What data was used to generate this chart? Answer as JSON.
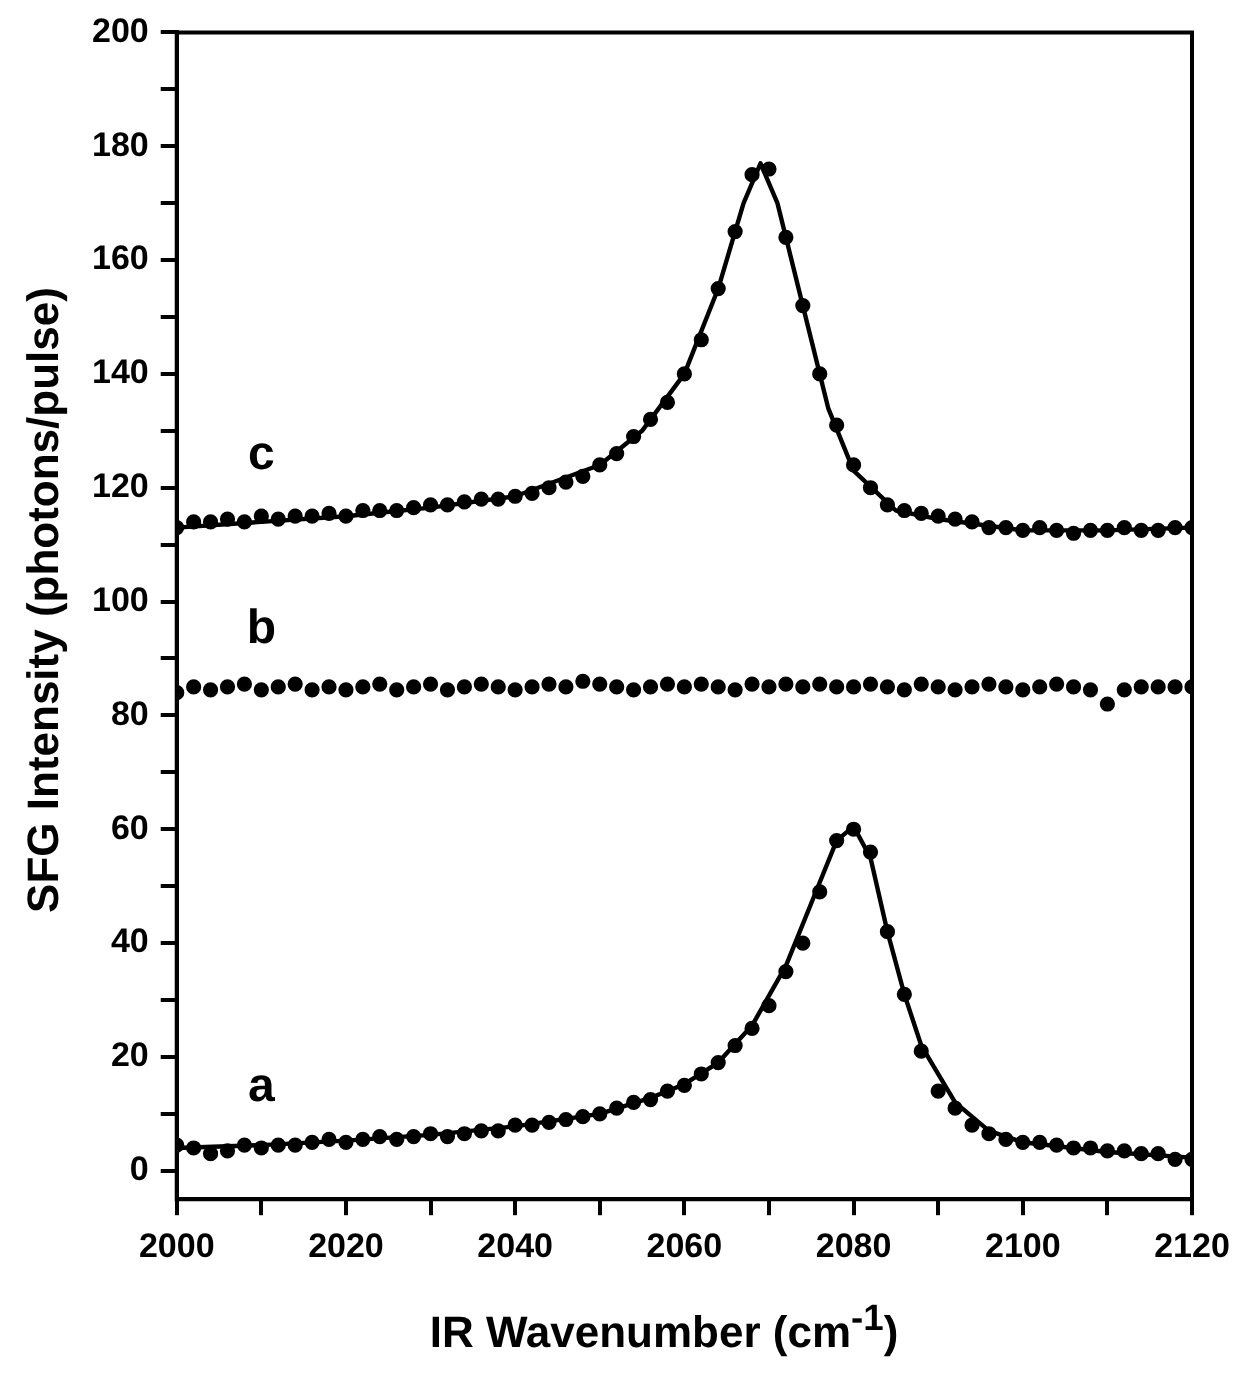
{
  "chart_data": {
    "type": "scatter",
    "xlabel": "IR Wavenumber (cm$^{-1}$)",
    "ylabel": "SFG Intensity (photons/pulse)",
    "x": [
      2000,
      2002,
      2004,
      2006,
      2008,
      2010,
      2012,
      2014,
      2016,
      2018,
      2020,
      2022,
      2024,
      2026,
      2028,
      2030,
      2032,
      2034,
      2036,
      2038,
      2040,
      2042,
      2044,
      2046,
      2048,
      2050,
      2052,
      2054,
      2056,
      2058,
      2060,
      2062,
      2064,
      2066,
      2068,
      2070,
      2072,
      2074,
      2076,
      2078,
      2080,
      2082,
      2084,
      2086,
      2088,
      2090,
      2092,
      2094,
      2096,
      2098,
      2100,
      2102,
      2104,
      2106,
      2108,
      2110,
      2112,
      2114,
      2116,
      2118,
      2120
    ],
    "series": [
      {
        "name": "a",
        "color": "#000000",
        "values": [
          4.5,
          4,
          3,
          3.5,
          4.5,
          4,
          4.5,
          4.5,
          5,
          5.5,
          5,
          5.5,
          6,
          5.5,
          6,
          6.5,
          6,
          6.5,
          7,
          7,
          8,
          8,
          8.5,
          9,
          9.5,
          10,
          11,
          12,
          12.5,
          14,
          15,
          17,
          19,
          22,
          25,
          29,
          35,
          40,
          49,
          58,
          60,
          56,
          42,
          31,
          21,
          14,
          11,
          8,
          6.5,
          5.5,
          5,
          5,
          4.5,
          4,
          4,
          3.5,
          3.5,
          3,
          3,
          2,
          2
        ]
      },
      {
        "type": "line",
        "color": "#000000",
        "marker": "none",
        "x": [
          2000,
          2010,
          2020,
          2030,
          2040,
          2050,
          2056,
          2060,
          2064,
          2068,
          2072,
          2075,
          2078,
          2080,
          2082,
          2084,
          2086,
          2088,
          2092,
          2096,
          2100,
          2110,
          2120
        ],
        "values": [
          4,
          4.5,
          5.3,
          6.3,
          7.8,
          10,
          12.8,
          15.2,
          19,
          25.5,
          36,
          47,
          58,
          60.5,
          55,
          42,
          31,
          22,
          12,
          7,
          5,
          3.3,
          2.3
        ]
      },
      {
        "name": "b",
        "color": "#000000",
        "values": [
          84,
          85,
          84.5,
          85,
          85.5,
          84.5,
          85,
          85.5,
          84.5,
          85,
          84.5,
          85,
          85.5,
          84.5,
          85,
          85.5,
          84.5,
          85,
          85.5,
          85,
          84.5,
          85,
          85.5,
          85,
          86,
          85.5,
          85,
          84.5,
          85,
          85.5,
          85,
          85.5,
          85,
          84.5,
          85.5,
          85,
          85.5,
          85,
          85.5,
          85,
          85,
          85.5,
          85,
          84.5,
          85.5,
          85,
          84.5,
          85,
          85.5,
          85,
          84.5,
          85,
          85.5,
          85,
          84.5,
          82,
          84.5,
          85,
          85,
          85,
          85
        ]
      },
      {
        "name": "c",
        "color": "#000000",
        "values": [
          113,
          114,
          114,
          114.5,
          114,
          115,
          114.5,
          115,
          115,
          115.5,
          115,
          116,
          116,
          116,
          116.5,
          117,
          117,
          117.5,
          118,
          118,
          118.5,
          119,
          120,
          121,
          122,
          124,
          126,
          129,
          132,
          135,
          140,
          146,
          155,
          165,
          175,
          176,
          164,
          152,
          140,
          131,
          124,
          120,
          117,
          116,
          115.5,
          115,
          114.5,
          114,
          113,
          113,
          112.5,
          113,
          112.5,
          112,
          112.5,
          112.5,
          113,
          112.5,
          112.5,
          113,
          113
        ]
      },
      {
        "type": "line",
        "color": "#000000",
        "marker": "none",
        "x": [
          2000,
          2010,
          2020,
          2030,
          2040,
          2050,
          2055,
          2060,
          2064,
          2067,
          2069,
          2071,
          2074,
          2077,
          2080,
          2085,
          2090,
          2100,
          2110,
          2120
        ],
        "values": [
          113,
          114,
          115,
          116.5,
          118.5,
          124,
          130,
          140,
          155,
          170,
          177,
          170,
          152,
          134,
          123,
          116,
          114.5,
          112.5,
          112.5,
          113
        ]
      }
    ],
    "marker": "circle",
    "line_style": "solid",
    "grid": false,
    "legend": false,
    "xlim": [
      2000,
      2120
    ],
    "ylim": [
      -5,
      200
    ],
    "xticks": [
      2000,
      {
        "value": 2010,
        "label": null
      },
      2020,
      {
        "value": 2030,
        "label": null
      },
      2040,
      {
        "value": 2050,
        "label": null
      },
      2060,
      {
        "value": 2070,
        "label": null
      },
      2080,
      {
        "value": 2090,
        "label": null
      },
      2100,
      {
        "value": 2110,
        "label": null
      },
      2120
    ],
    "yticks": [
      0,
      {
        "value": 10,
        "label": null
      },
      20,
      {
        "value": 30,
        "label": null
      },
      40,
      {
        "value": 50,
        "label": null
      },
      60,
      {
        "value": 70,
        "label": null
      },
      80,
      {
        "value": 90,
        "label": null
      },
      100,
      {
        "value": 110,
        "label": null
      },
      120,
      {
        "value": 130,
        "label": null
      },
      140,
      {
        "value": 150,
        "label": null
      },
      160,
      {
        "value": 170,
        "label": null
      },
      180,
      {
        "value": 190,
        "label": null
      },
      200
    ]
  }
}
